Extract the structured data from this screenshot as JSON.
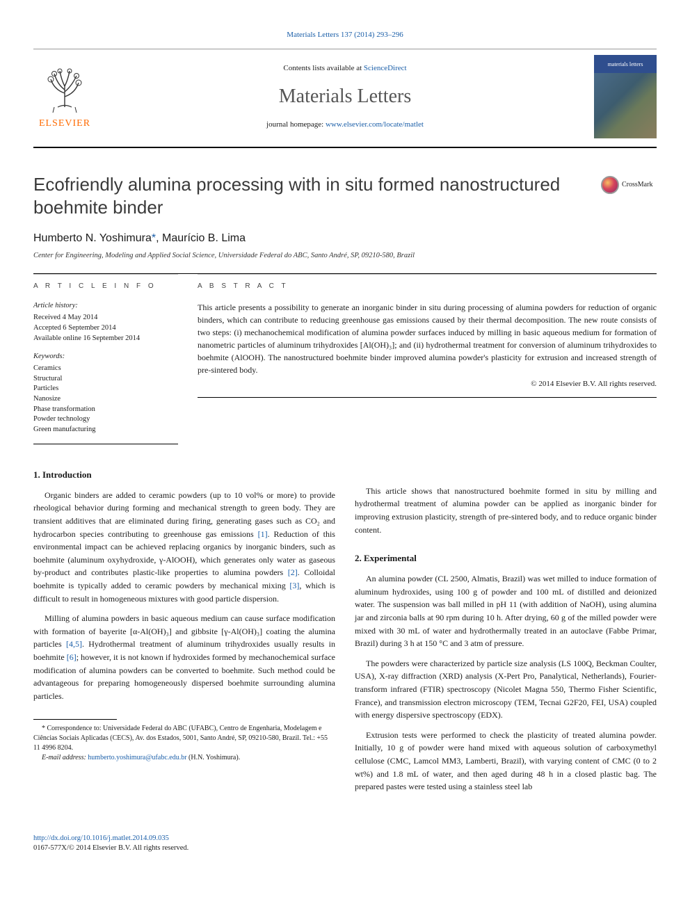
{
  "journal_ref_link": "Materials Letters 137 (2014) 293–296",
  "header": {
    "contents_prefix": "Contents lists available at ",
    "contents_link": "ScienceDirect",
    "journal_name": "Materials Letters",
    "homepage_prefix": "journal homepage: ",
    "homepage_url": "www.elsevier.com/locate/matlet",
    "publisher_name": "ELSEVIER",
    "cover_label": "materials letters"
  },
  "crossmark_label": "CrossMark",
  "title": "Ecofriendly alumina processing with in situ formed nanostructured boehmite binder",
  "authors_html": "Humberto N. Yoshimura *, Maurício B. Lima",
  "author_link_sup": "*",
  "affiliation": "Center for Engineering, Modeling and Applied Social Science, Universidade Federal do ABC, Santo André, SP, 09210-580, Brazil",
  "article_info": {
    "heading": "A R T I C L E  I N F O",
    "history_label": "Article history:",
    "received": "Received 4 May 2014",
    "accepted": "Accepted 6 September 2014",
    "available": "Available online 16 September 2014",
    "keywords_label": "Keywords:",
    "keywords": [
      "Ceramics",
      "Structural",
      "Particles",
      "Nanosize",
      "Phase transformation",
      "Powder technology",
      "Green manufacturing"
    ]
  },
  "abstract": {
    "heading": "A B S T R A C T",
    "text": "This article presents a possibility to generate an inorganic binder in situ during processing of alumina powders for reduction of organic binders, which can contribute to reducing greenhouse gas emissions caused by their thermal decomposition. The new route consists of two steps: (i) mechanochemical modification of alumina powder surfaces induced by milling in basic aqueous medium for formation of nanometric particles of aluminum trihydroxides [Al(OH)₃]; and (ii) hydrothermal treatment for conversion of aluminum trihydroxides to boehmite (AlOOH). The nanostructured boehmite binder improved alumina powder's plasticity for extrusion and increased strength of pre-sintered body.",
    "copyright": "© 2014 Elsevier B.V. All rights reserved."
  },
  "sections": {
    "intro_heading": "1.  Introduction",
    "intro_p1_a": "Organic binders are added to ceramic powders (up to 10 vol% or more) to provide rheological behavior during forming and mechanical strength to green body. They are transient additives that are eliminated during firing, generating gases such as CO₂ and hydrocarbon species contributing to greenhouse gas emissions ",
    "intro_p1_ref1": "[1]",
    "intro_p1_b": ". Reduction of this environmental impact can be achieved replacing organics by inorganic binders, such as boehmite (aluminum oxyhydroxide, γ-AlOOH), which generates only water as gaseous by-product and contributes plastic-like properties to alumina powders ",
    "intro_p1_ref2": "[2]",
    "intro_p1_c": ". Colloidal boehmite is typically added to ceramic powders by mechanical mixing ",
    "intro_p1_ref3": "[3]",
    "intro_p1_d": ", which is difficult to result in homogeneous mixtures with good particle dispersion.",
    "intro_p2_a": "Milling of alumina powders in basic aqueous medium can cause surface modification with formation of bayerite [α-Al(OH)₃] and gibbsite [γ-Al(OH)₃] coating the alumina particles ",
    "intro_p2_ref45": "[4,5]",
    "intro_p2_b": ". Hydrothermal treatment of aluminum trihydroxides usually results in boehmite ",
    "intro_p2_ref6": "[6]",
    "intro_p2_c": "; however, it is not known if hydroxides formed by mechanochemical surface modification of alumina powders can be converted to boehmite. Such method could be advantageous for preparing homogeneously dispersed boehmite surrounding alumina particles.",
    "col2_p1": "This article shows that nanostructured boehmite formed in situ by milling and hydrothermal treatment of alumina powder can be applied as inorganic binder for improving extrusion plasticity, strength of pre-sintered body, and to reduce organic binder content.",
    "exp_heading": "2.  Experimental",
    "exp_p1": "An alumina powder (CL 2500, Almatis, Brazil) was wet milled to induce formation of aluminum hydroxides, using 100 g of powder and 100 mL of distilled and deionized water. The suspension was ball milled in pH 11 (with addition of NaOH), using alumina jar and zirconia balls at 90 rpm during 10 h. After drying, 60 g of the milled powder were mixed with 30 mL of water and hydrothermally treated in an autoclave (Fabbe Primar, Brazil) during 3 h at 150 °C and 3 atm of pressure.",
    "exp_p2": "The powders were characterized by particle size analysis (LS 100Q, Beckman Coulter, USA), X-ray diffraction (XRD) analysis (X-Pert Pro, Panalytical, Netherlands), Fourier-transform infrared (FTIR) spectroscopy (Nicolet Magna 550, Thermo Fisher Scientific, France), and transmission electron microscopy (TEM, Tecnai G2F20, FEI, USA) coupled with energy dispersive spectroscopy (EDX).",
    "exp_p3": "Extrusion tests were performed to check the plasticity of treated alumina powder. Initially, 10 g of powder were hand mixed with aqueous solution of carboxymethyl cellulose (CMC, Lamcol MM3, Lamberti, Brazil), with varying content of CMC (0 to 2 wt%) and 1.8 mL of water, and then aged during 48 h in a closed plastic bag. The prepared pastes were tested using a stainless steel lab"
  },
  "footnote": {
    "corr": "* Correspondence to: Universidade Federal do ABC (UFABC), Centro de Engenharia, Modelagem e Ciências Sociais Aplicadas (CECS), Av. dos Estados, 5001, Santo André, SP, 09210-580, Brazil. Tel.: +55 11 4996 8204.",
    "email_label": "E-mail address: ",
    "email": "humberto.yoshimura@ufabc.edu.br",
    "email_suffix": " (H.N. Yoshimura)."
  },
  "doi": {
    "url": "http://dx.doi.org/10.1016/j.matlet.2014.09.035",
    "issn_line": "0167-577X/© 2014 Elsevier B.V. All rights reserved."
  },
  "colors": {
    "link": "#1a5ea8",
    "elsevier_orange": "#ff6a00"
  }
}
